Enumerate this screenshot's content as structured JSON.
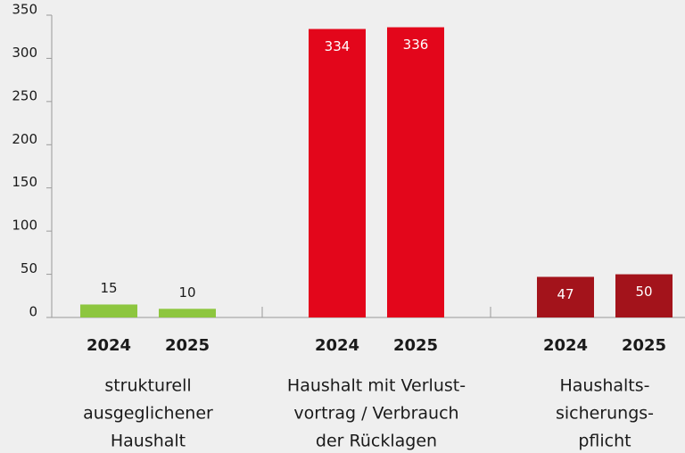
{
  "chart_data": {
    "type": "bar",
    "ylim": [
      0,
      350
    ],
    "yticks": [
      0,
      50,
      100,
      150,
      200,
      250,
      300,
      350
    ],
    "groups": [
      {
        "name_lines": [
          "strukturell",
          "ausgeglichener",
          "Haushalt"
        ],
        "color": "#8dc63f",
        "categories": [
          "2024",
          "2025"
        ],
        "values": [
          15,
          10
        ]
      },
      {
        "name_lines": [
          "Haushalt mit Verlust-",
          "vortrag / Verbrauch",
          "der Rücklagen"
        ],
        "color": "#e3061b",
        "categories": [
          "2024",
          "2025"
        ],
        "values": [
          334,
          336
        ]
      },
      {
        "name_lines": [
          "Haushalts-",
          "sicherungs-",
          "pflicht"
        ],
        "color": "#a3131b",
        "categories": [
          "2024",
          "2025"
        ],
        "values": [
          47,
          50
        ]
      }
    ]
  }
}
